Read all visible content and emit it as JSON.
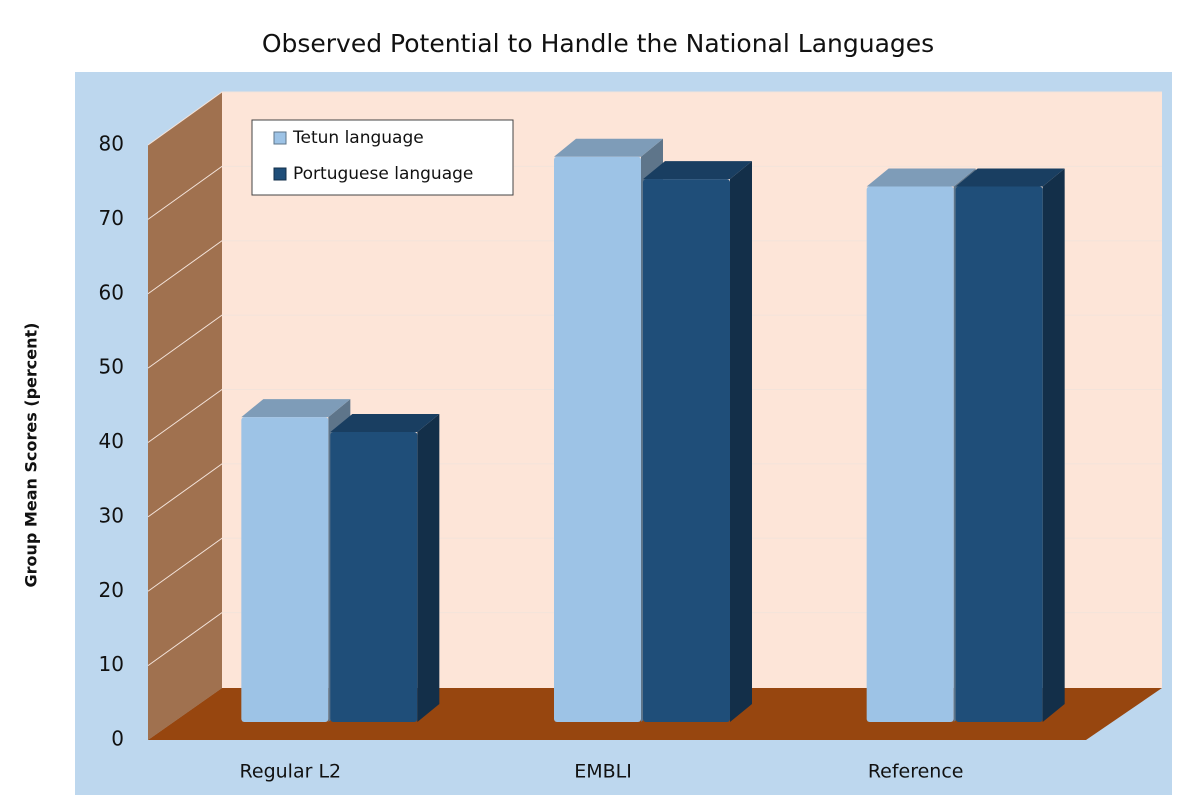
{
  "chart_data": {
    "type": "bar",
    "title": "Observed Potential to Handle the National Languages",
    "y_label": "Group Mean Scores (percent)",
    "categories": [
      "Regular L2",
      "EMBLI",
      "Reference"
    ],
    "series": [
      {
        "name": "Tetun language",
        "color": "#9dc3e6",
        "values": [
          41,
          76,
          72
        ]
      },
      {
        "name": "Portuguese language",
        "color": "#1f4e79",
        "values": [
          39,
          73,
          72
        ]
      }
    ],
    "ylim": [
      0,
      80
    ],
    "yticks": [
      0,
      10,
      20,
      30,
      40,
      50,
      60,
      70,
      80
    ],
    "grid": true
  }
}
